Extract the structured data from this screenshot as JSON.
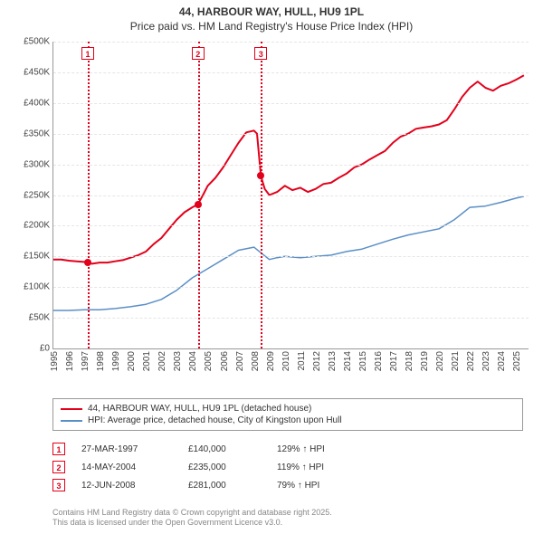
{
  "title": "44, HARBOUR WAY, HULL, HU9 1PL",
  "subtitle": "Price paid vs. HM Land Registry's House Price Index (HPI)",
  "chart": {
    "type": "line",
    "background_color": "#ffffff",
    "grid_color": "#e5e5e5",
    "axis_color": "#999999",
    "title_fontsize": 12,
    "label_fontsize": 10,
    "ylim": [
      0,
      500000
    ],
    "ytick_step": 50000,
    "yticks": [
      "£0",
      "£50K",
      "£100K",
      "£150K",
      "£200K",
      "£250K",
      "£300K",
      "£350K",
      "£400K",
      "£450K",
      "£500K"
    ],
    "xlim": [
      1995,
      2025.8
    ],
    "xticks": [
      1995,
      1996,
      1997,
      1998,
      1999,
      2000,
      2001,
      2002,
      2003,
      2004,
      2005,
      2006,
      2007,
      2008,
      2009,
      2010,
      2011,
      2012,
      2013,
      2014,
      2015,
      2016,
      2017,
      2018,
      2019,
      2020,
      2021,
      2022,
      2023,
      2024,
      2025
    ],
    "series": [
      {
        "id": "price_paid",
        "label": "44, HARBOUR WAY, HULL, HU9 1PL (detached house)",
        "color": "#e2001a",
        "line_width": 2,
        "data": [
          [
            1995,
            145000
          ],
          [
            1995.5,
            145000
          ],
          [
            1996,
            143000
          ],
          [
            1996.5,
            142000
          ],
          [
            1997,
            141000
          ],
          [
            1997.23,
            140000
          ],
          [
            1997.5,
            138000
          ],
          [
            1998,
            140000
          ],
          [
            1998.5,
            140000
          ],
          [
            1999,
            142000
          ],
          [
            1999.5,
            144000
          ],
          [
            2000,
            148000
          ],
          [
            2000.5,
            152000
          ],
          [
            2001,
            158000
          ],
          [
            2001.5,
            170000
          ],
          [
            2002,
            180000
          ],
          [
            2002.5,
            195000
          ],
          [
            2003,
            210000
          ],
          [
            2003.5,
            222000
          ],
          [
            2004,
            230000
          ],
          [
            2004.37,
            235000
          ],
          [
            2004.7,
            250000
          ],
          [
            2005,
            265000
          ],
          [
            2005.5,
            278000
          ],
          [
            2006,
            295000
          ],
          [
            2006.5,
            315000
          ],
          [
            2007,
            335000
          ],
          [
            2007.5,
            352000
          ],
          [
            2008,
            355000
          ],
          [
            2008.2,
            350000
          ],
          [
            2008.45,
            281000
          ],
          [
            2008.7,
            260000
          ],
          [
            2009,
            250000
          ],
          [
            2009.5,
            255000
          ],
          [
            2010,
            265000
          ],
          [
            2010.5,
            258000
          ],
          [
            2011,
            262000
          ],
          [
            2011.5,
            255000
          ],
          [
            2012,
            260000
          ],
          [
            2012.5,
            268000
          ],
          [
            2013,
            270000
          ],
          [
            2013.5,
            278000
          ],
          [
            2014,
            285000
          ],
          [
            2014.5,
            295000
          ],
          [
            2015,
            300000
          ],
          [
            2015.5,
            308000
          ],
          [
            2016,
            315000
          ],
          [
            2016.5,
            322000
          ],
          [
            2017,
            335000
          ],
          [
            2017.5,
            345000
          ],
          [
            2018,
            350000
          ],
          [
            2018.5,
            358000
          ],
          [
            2019,
            360000
          ],
          [
            2019.5,
            362000
          ],
          [
            2020,
            365000
          ],
          [
            2020.5,
            372000
          ],
          [
            2021,
            390000
          ],
          [
            2021.5,
            410000
          ],
          [
            2022,
            425000
          ],
          [
            2022.5,
            435000
          ],
          [
            2023,
            425000
          ],
          [
            2023.5,
            420000
          ],
          [
            2024,
            428000
          ],
          [
            2024.5,
            432000
          ],
          [
            2025,
            438000
          ],
          [
            2025.5,
            445000
          ]
        ]
      },
      {
        "id": "hpi",
        "label": "HPI: Average price, detached house, City of Kingston upon Hull",
        "color": "#5b8fc6",
        "line_width": 1.5,
        "data": [
          [
            1995,
            62000
          ],
          [
            1996,
            62000
          ],
          [
            1997,
            63000
          ],
          [
            1998,
            63000
          ],
          [
            1999,
            65000
          ],
          [
            2000,
            68000
          ],
          [
            2001,
            72000
          ],
          [
            2002,
            80000
          ],
          [
            2003,
            95000
          ],
          [
            2004,
            115000
          ],
          [
            2005,
            130000
          ],
          [
            2006,
            145000
          ],
          [
            2007,
            160000
          ],
          [
            2008,
            165000
          ],
          [
            2008.5,
            155000
          ],
          [
            2009,
            145000
          ],
          [
            2009.5,
            148000
          ],
          [
            2010,
            150000
          ],
          [
            2011,
            148000
          ],
          [
            2012,
            150000
          ],
          [
            2013,
            152000
          ],
          [
            2014,
            158000
          ],
          [
            2015,
            162000
          ],
          [
            2016,
            170000
          ],
          [
            2017,
            178000
          ],
          [
            2018,
            185000
          ],
          [
            2019,
            190000
          ],
          [
            2020,
            195000
          ],
          [
            2021,
            210000
          ],
          [
            2022,
            230000
          ],
          [
            2023,
            232000
          ],
          [
            2024,
            238000
          ],
          [
            2025,
            245000
          ],
          [
            2025.5,
            248000
          ]
        ]
      }
    ],
    "markers": [
      {
        "n": "1",
        "x": 1997.23,
        "y": 140000,
        "date": "27-MAR-1997",
        "price": "£140,000",
        "hpi": "129% ↑ HPI"
      },
      {
        "n": "2",
        "x": 2004.37,
        "y": 235000,
        "date": "14-MAY-2004",
        "price": "£235,000",
        "hpi": "119% ↑ HPI"
      },
      {
        "n": "3",
        "x": 2008.45,
        "y": 281000,
        "date": "12-JUN-2008",
        "price": "£281,000",
        "hpi": "79% ↑ HPI"
      }
    ]
  },
  "legend": {
    "items": [
      {
        "color": "#e2001a",
        "label": "44, HARBOUR WAY, HULL, HU9 1PL (detached house)"
      },
      {
        "color": "#5b8fc6",
        "label": "HPI: Average price, detached house, City of Kingston upon Hull"
      }
    ]
  },
  "footer_line1": "Contains HM Land Registry data © Crown copyright and database right 2025.",
  "footer_line2": "This data is licensed under the Open Government Licence v3.0."
}
